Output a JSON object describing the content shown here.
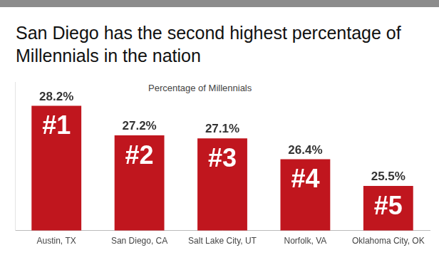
{
  "chart_data": {
    "type": "bar",
    "title": "San Diego has the second highest percentage of Millennials in the nation",
    "subtitle": "Percentage of Millennials",
    "categories": [
      "Austin, TX",
      "San Diego, CA",
      "Salt Lake City, UT",
      "Norfolk, VA",
      "Oklahoma City, OK"
    ],
    "values": [
      28.2,
      27.2,
      27.1,
      26.4,
      25.5
    ],
    "value_labels": [
      "28.2%",
      "27.2%",
      "27.1%",
      "26.4%",
      "25.5%"
    ],
    "annotations": [
      "#1",
      "#2",
      "#3",
      "#4",
      "#5"
    ],
    "color": "#c0161e",
    "ylim": [
      24,
      29
    ],
    "grid": false,
    "data_labels": true,
    "tick_labels": "x"
  }
}
